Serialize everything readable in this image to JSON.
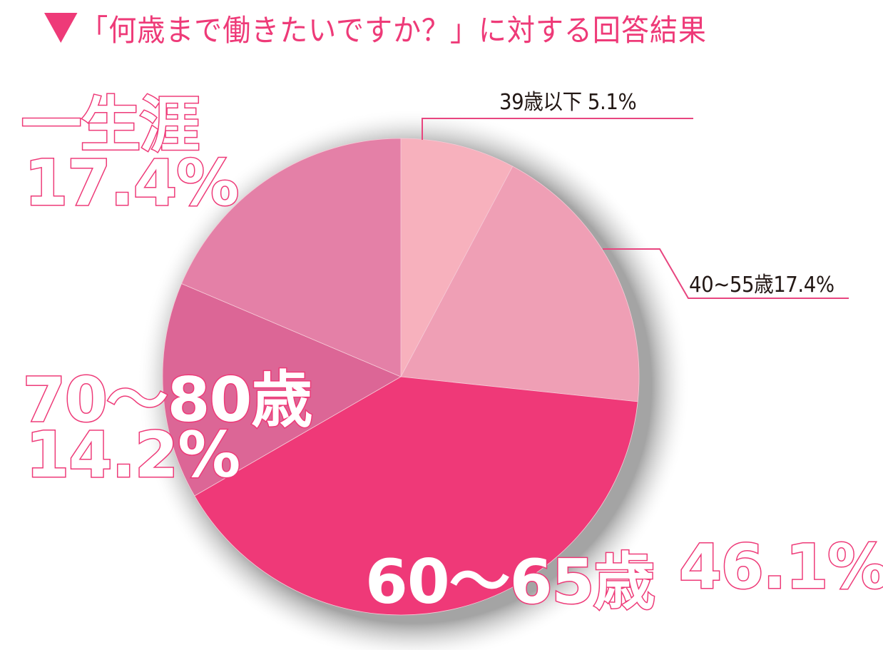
{
  "title": {
    "marker": "▼",
    "text": "「何歳まで働きたいですか？」に対する回答結果"
  },
  "colors": {
    "accent": "#ee3a78",
    "slice_39_under": "#f7b1bd",
    "slice_40_55": "#ef9fb5",
    "slice_60_65": "#ef3978",
    "slice_70_80": "#dc6696",
    "slice_lifetime": "#e480a7",
    "small_label_text": "#231815",
    "leader_line": "#e8457f"
  },
  "labels": {
    "under39": "39歳以下 5.1%",
    "age40_55": "40~55歳17.4%",
    "lifetime_name": "一生涯",
    "lifetime_pct": "17.4%",
    "age70_80_name": "70～80歳",
    "age70_80_pct": "14.2%",
    "age60_65_name": "60～65歳",
    "age60_65_pct": "46.1%"
  },
  "chart_data": {
    "type": "pie",
    "title": "▼「何歳まで働きたいですか？」に対する回答結果",
    "categories": [
      "39歳以下",
      "40~55歳",
      "60~65歳",
      "70~80歳",
      "一生涯"
    ],
    "values": [
      5.1,
      17.4,
      46.1,
      14.2,
      17.4
    ],
    "unit": "%",
    "start_angle": "12 o'clock, clockwise",
    "drawn_angles_deg": [
      [
        0,
        28
      ],
      [
        28,
        96
      ],
      [
        96,
        240
      ],
      [
        240,
        293
      ],
      [
        293,
        360
      ]
    ],
    "colors": [
      "#f7b1bd",
      "#ef9fb5",
      "#ef3978",
      "#dc6696",
      "#e480a7"
    ],
    "legend": "none (direct labels)",
    "annotations": [
      "39歳以下 5.1%",
      "40~55歳17.4%",
      "60～65歳 46.1%",
      "70～80歳 14.2%",
      "一生涯 17.4%"
    ]
  }
}
